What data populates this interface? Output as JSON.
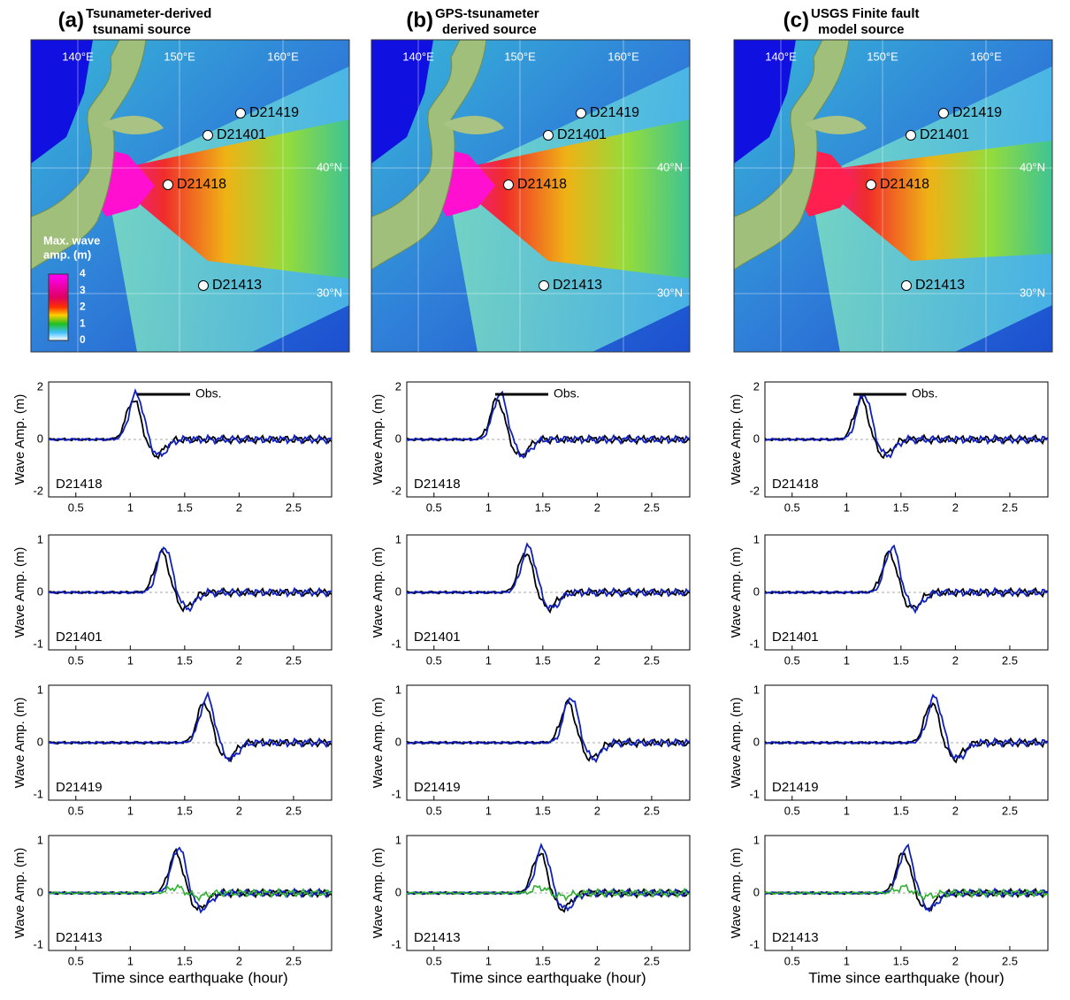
{
  "maps": [
    {
      "label": "(a)",
      "title": [
        "Tsunameter-derived",
        "tsunami source"
      ]
    },
    {
      "label": "(b)",
      "title": [
        "GPS-tsunameter",
        "derived source"
      ]
    },
    {
      "label": "(c)",
      "title": [
        "USGS Finite fault",
        "model source"
      ]
    }
  ],
  "map_axes": {
    "lon": [
      "140°E",
      "150°E",
      "160°E"
    ],
    "lat": [
      "40°N",
      "30°N"
    ]
  },
  "stations": [
    "D21419",
    "D21401",
    "D21418",
    "D21413"
  ],
  "colorbar": {
    "title": [
      "Max. wave",
      "amp. (m)"
    ],
    "ticks": [
      "4",
      "3",
      "2",
      "1",
      "0"
    ]
  },
  "waveforms": {
    "legend": "Obs.",
    "y_label": "Wave Amp. (m)",
    "x_label": "Time since earthquake (hour)",
    "xticks": [
      "0.5",
      "1",
      "1.5",
      "2",
      "2.5"
    ],
    "rows": [
      {
        "station": "D21418",
        "yticks": [
          "2",
          "0",
          "-2"
        ]
      },
      {
        "station": "D21401",
        "yticks": [
          "1",
          "0",
          "-1"
        ]
      },
      {
        "station": "D21419",
        "yticks": [
          "1",
          "0",
          "-1"
        ]
      },
      {
        "station": "D21413",
        "yticks": [
          "1",
          "0",
          "-1"
        ]
      }
    ]
  }
}
